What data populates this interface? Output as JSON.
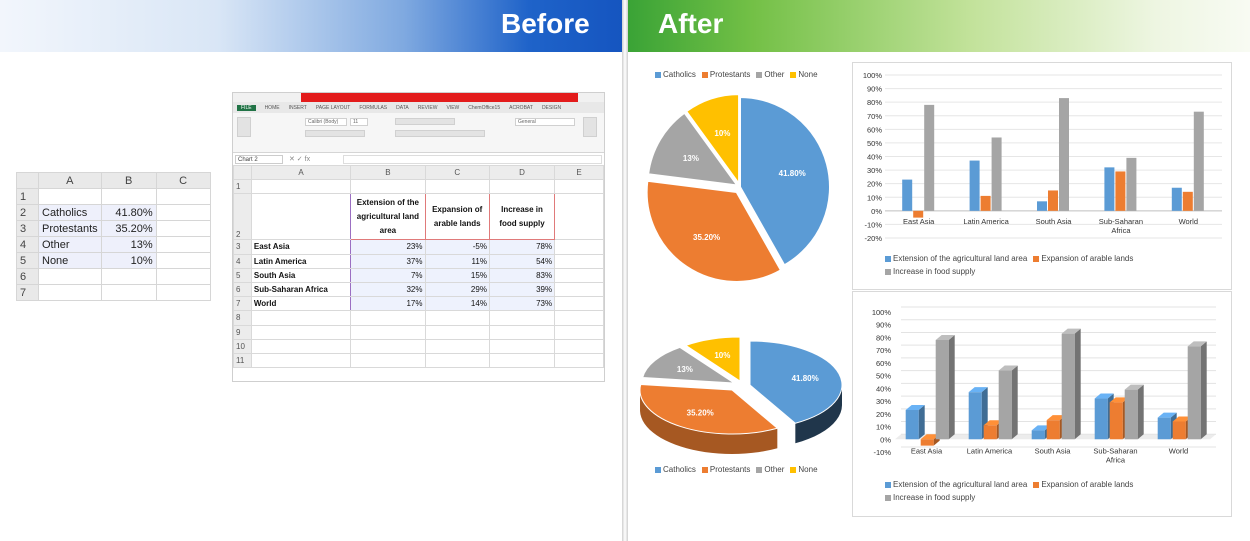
{
  "banner": {
    "before": "Before",
    "after": "After"
  },
  "colors": {
    "catholics": "#5b9bd5",
    "protestants": "#ed7d31",
    "other": "#a5a5a5",
    "none": "#ffc000",
    "ext": "#5b9bd5",
    "exp": "#ed7d31",
    "inc": "#a5a5a5"
  },
  "small_sheet": {
    "cols": [
      "A",
      "B",
      "C"
    ],
    "rows": [
      {
        "n": "1",
        "label": "",
        "value": ""
      },
      {
        "n": "2",
        "label": "Catholics",
        "value": "41.80%"
      },
      {
        "n": "3",
        "label": "Protestants",
        "value": "35.20%"
      },
      {
        "n": "4",
        "label": "Other",
        "value": "13%"
      },
      {
        "n": "5",
        "label": "None",
        "value": "10%"
      },
      {
        "n": "6",
        "label": "",
        "value": ""
      },
      {
        "n": "7",
        "label": "",
        "value": ""
      }
    ]
  },
  "excel": {
    "tab_file": "FILE",
    "tabs": [
      "HOME",
      "INSERT",
      "PAGE LAYOUT",
      "FORMULAS",
      "DATA",
      "REVIEW",
      "VIEW",
      "ChemOffice15",
      "ACROBAT",
      "DESIGN"
    ],
    "font_name": "Calibri (Body)",
    "font_size": "11",
    "number_format": "General",
    "name_box": "Chart 2",
    "cols": [
      "A",
      "B",
      "C",
      "D",
      "E"
    ],
    "headers": [
      "Extension of the agricultural land area",
      "Expansion of arable lands",
      "Increase in food supply"
    ],
    "rows": [
      {
        "n": "3",
        "label": "East Asia",
        "v": [
          "23%",
          "-5%",
          "78%"
        ]
      },
      {
        "n": "4",
        "label": "Latin America",
        "v": [
          "37%",
          "11%",
          "54%"
        ]
      },
      {
        "n": "5",
        "label": "South Asia",
        "v": [
          "7%",
          "15%",
          "83%"
        ]
      },
      {
        "n": "6",
        "label": "Sub-Saharan Africa",
        "v": [
          "32%",
          "29%",
          "39%"
        ]
      },
      {
        "n": "7",
        "label": "World",
        "v": [
          "17%",
          "14%",
          "73%"
        ]
      }
    ],
    "empty_rows": [
      "8",
      "9",
      "10",
      "11"
    ]
  },
  "chart_data": [
    {
      "type": "pie",
      "categories": [
        "Catholics",
        "Protestants",
        "Other",
        "None"
      ],
      "values": [
        41.8,
        35.2,
        13,
        10
      ],
      "labels": [
        "41.80%",
        "35.20%",
        "13%",
        "10%"
      ],
      "legend": "top"
    },
    {
      "type": "bar",
      "categories": [
        "East Asia",
        "Latin America",
        "South Asia",
        "Sub-Saharan Africa",
        "World"
      ],
      "series": [
        {
          "name": "Extension of the agricultural land area",
          "values": [
            23,
            37,
            7,
            32,
            17
          ]
        },
        {
          "name": "Expansion of arable lands",
          "values": [
            -5,
            11,
            15,
            29,
            14
          ]
        },
        {
          "name": "Increase in food supply",
          "values": [
            78,
            54,
            83,
            39,
            73
          ]
        }
      ],
      "ylim": [
        -20,
        100
      ],
      "yticks": [
        "100%",
        "90%",
        "80%",
        "70%",
        "60%",
        "50%",
        "40%",
        "30%",
        "20%",
        "10%",
        "0%",
        "-10%",
        "-20%"
      ],
      "legend": "bottom"
    },
    {
      "type": "pie",
      "style": "3d",
      "categories": [
        "Catholics",
        "Protestants",
        "Other",
        "None"
      ],
      "values": [
        41.8,
        35.2,
        13,
        10
      ],
      "labels": [
        "41.80%",
        "35.20%",
        "13%",
        "10%"
      ],
      "legend": "bottom"
    },
    {
      "type": "bar",
      "style": "3d",
      "categories": [
        "East Asia",
        "Latin America",
        "South Asia",
        "Sub-Saharan Africa",
        "World"
      ],
      "series": [
        {
          "name": "Extension of the agricultural land area",
          "values": [
            23,
            37,
            7,
            32,
            17
          ]
        },
        {
          "name": "Expansion of arable lands",
          "values": [
            -5,
            11,
            15,
            29,
            14
          ]
        },
        {
          "name": "Increase in food supply",
          "values": [
            78,
            54,
            83,
            39,
            73
          ]
        }
      ],
      "ylim": [
        -10,
        100
      ],
      "yticks": [
        "100%",
        "90%",
        "80%",
        "70%",
        "60%",
        "50%",
        "40%",
        "30%",
        "20%",
        "10%",
        "0%",
        "-10%"
      ],
      "legend": "bottom"
    }
  ]
}
